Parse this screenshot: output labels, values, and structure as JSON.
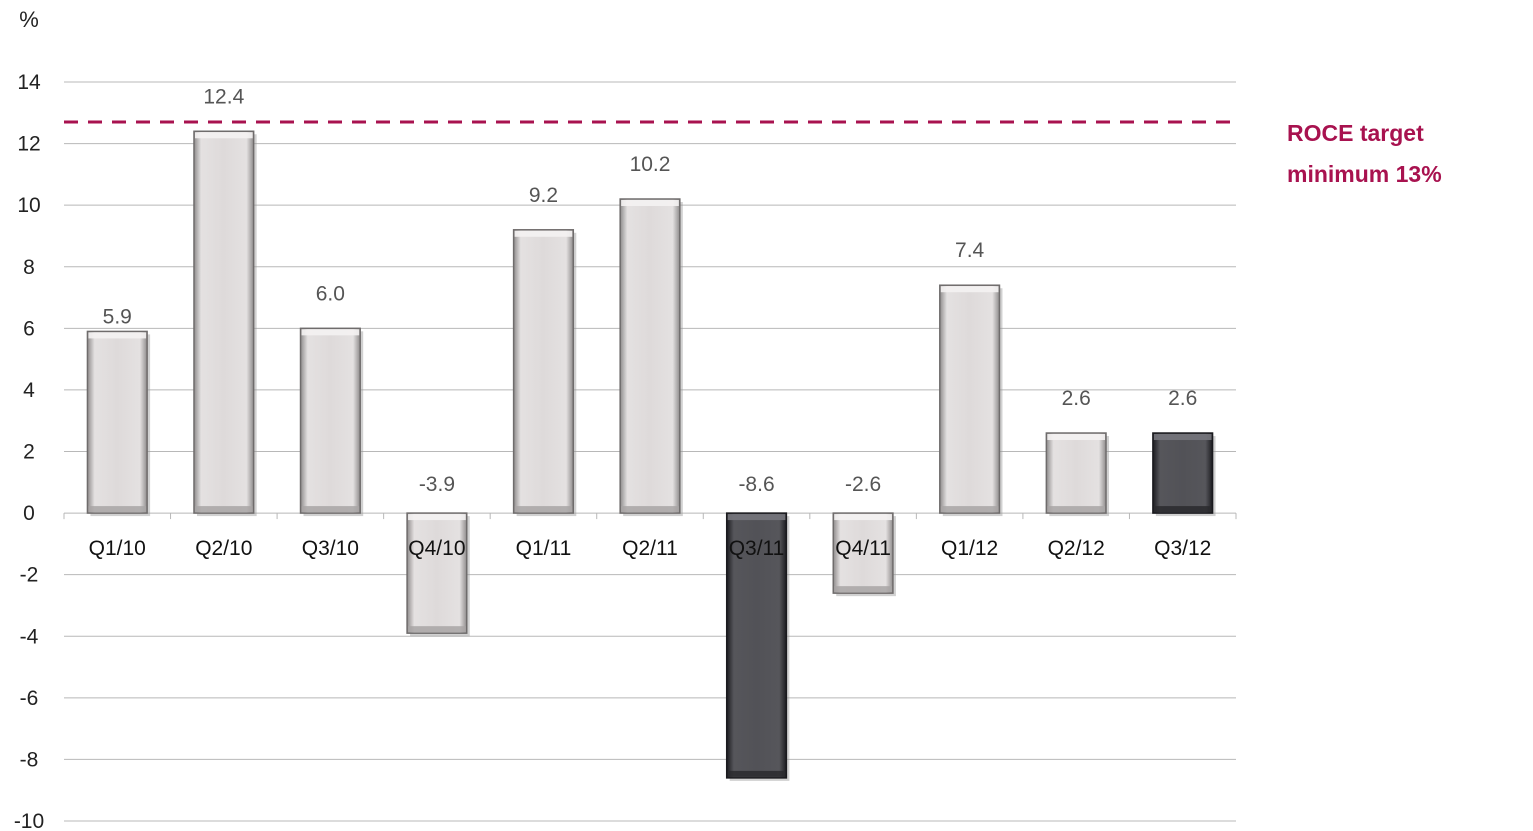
{
  "chart_data": {
    "type": "bar",
    "ylabel": "%",
    "ylim": [
      -10,
      14
    ],
    "ytick_step": 2,
    "categories": [
      "Q1/10",
      "Q2/10",
      "Q3/10",
      "Q4/10",
      "Q1/11",
      "Q2/11",
      "Q3/11",
      "Q4/11",
      "Q1/12",
      "Q2/12",
      "Q3/12"
    ],
    "values": [
      5.9,
      12.4,
      6.0,
      -3.9,
      9.2,
      10.2,
      -8.6,
      -2.6,
      7.4,
      2.6,
      2.6
    ],
    "data_labels": [
      "5.9",
      "12.4",
      "6.0",
      "-3.9",
      "9.2",
      "10.2",
      "-8.6",
      "-2.6",
      "7.4",
      "2.6",
      "2.6"
    ],
    "highlighted": [
      false,
      false,
      false,
      false,
      false,
      false,
      true,
      false,
      false,
      false,
      true
    ],
    "grid": true,
    "target": {
      "value": 12.7,
      "line1": "ROCE target",
      "line2": "minimum 13%",
      "color": "#a8124f"
    },
    "colors": {
      "bar_light": "#d9d6d6",
      "bar_dark": "#505055",
      "grid": "#b8b8b8"
    }
  }
}
